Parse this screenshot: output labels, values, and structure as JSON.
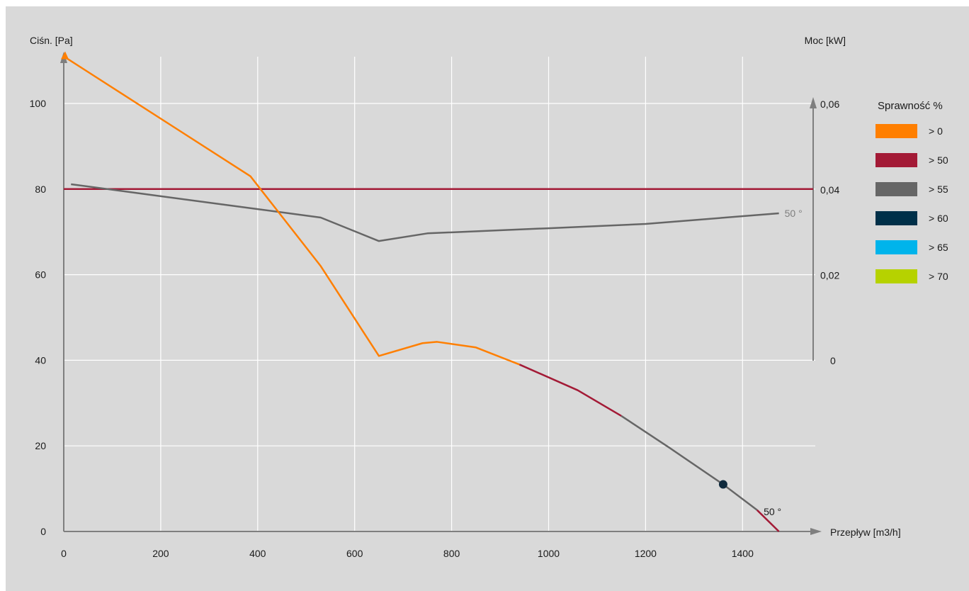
{
  "chart_data": {
    "type": "line",
    "ylabel_left": "Ciśn. [Pa]",
    "ylabel_right": "Moc [kW]",
    "xlabel": "Przepływ [m3/h]",
    "xlim": [
      0,
      1550
    ],
    "x_ticks": [
      "0",
      "200",
      "400",
      "600",
      "800",
      "1000",
      "1200",
      "1400"
    ],
    "x_tick_values": [
      0,
      200,
      400,
      600,
      800,
      1000,
      1200,
      1400
    ],
    "ylim_left": [
      0,
      110
    ],
    "y_left_ticks": [
      "0",
      "20",
      "40",
      "60",
      "80",
      "100"
    ],
    "y_left_tick_values": [
      0,
      20,
      40,
      60,
      80,
      100
    ],
    "ylim_right": [
      0,
      0.06
    ],
    "y_right_ticks": [
      "0",
      "0,02",
      "0,04",
      "0,06"
    ],
    "y_right_tick_values": [
      0,
      0.02,
      0.04,
      0.06
    ],
    "grid": true,
    "legend_position": "right",
    "legend_title": "Sprawność %",
    "legend": [
      {
        "label": "> 0",
        "color": "#ff7f00"
      },
      {
        "label": "> 50",
        "color": "#a31a36"
      },
      {
        "label": "> 55",
        "color": "#666666"
      },
      {
        "label": "> 60",
        "color": "#003049"
      },
      {
        "label": "> 65",
        "color": "#00b4eb"
      },
      {
        "label": "> 70",
        "color": "#b6d200"
      }
    ],
    "pressure_curve": {
      "curve_label": "50 °",
      "segments": [
        {
          "color": "#ff7f00",
          "points": [
            [
              0,
              111
            ],
            [
              385,
              83
            ],
            [
              530,
              62
            ],
            [
              650,
              41
            ],
            [
              740,
              44
            ],
            [
              770,
              44.3
            ],
            [
              850,
              43
            ],
            [
              940,
              39
            ]
          ]
        },
        {
          "color": "#a31a36",
          "points": [
            [
              940,
              39
            ],
            [
              1060,
              33
            ],
            [
              1150,
              27
            ]
          ]
        },
        {
          "color": "#666666",
          "points": [
            [
              1150,
              27
            ],
            [
              1250,
              19.5
            ],
            [
              1360,
              11
            ],
            [
              1430,
              5
            ]
          ]
        },
        {
          "color": "#a31a36",
          "points": [
            [
              1430,
              5
            ],
            [
              1475,
              0
            ]
          ]
        }
      ]
    },
    "power_curve": {
      "curve_label": "50 °",
      "color": "#666666",
      "points": [
        [
          15,
          0.0413
        ],
        [
          200,
          0.0385
        ],
        [
          385,
          0.0357
        ],
        [
          530,
          0.0335
        ],
        [
          650,
          0.028
        ],
        [
          750,
          0.0298
        ],
        [
          1000,
          0.031
        ],
        [
          1200,
          0.032
        ],
        [
          1475,
          0.0345
        ]
      ]
    },
    "reference_line": {
      "color": "#a31a36",
      "y_left": 80
    },
    "operating_point": {
      "x": 1360,
      "y": 11,
      "color": "#0f2a3d"
    }
  }
}
